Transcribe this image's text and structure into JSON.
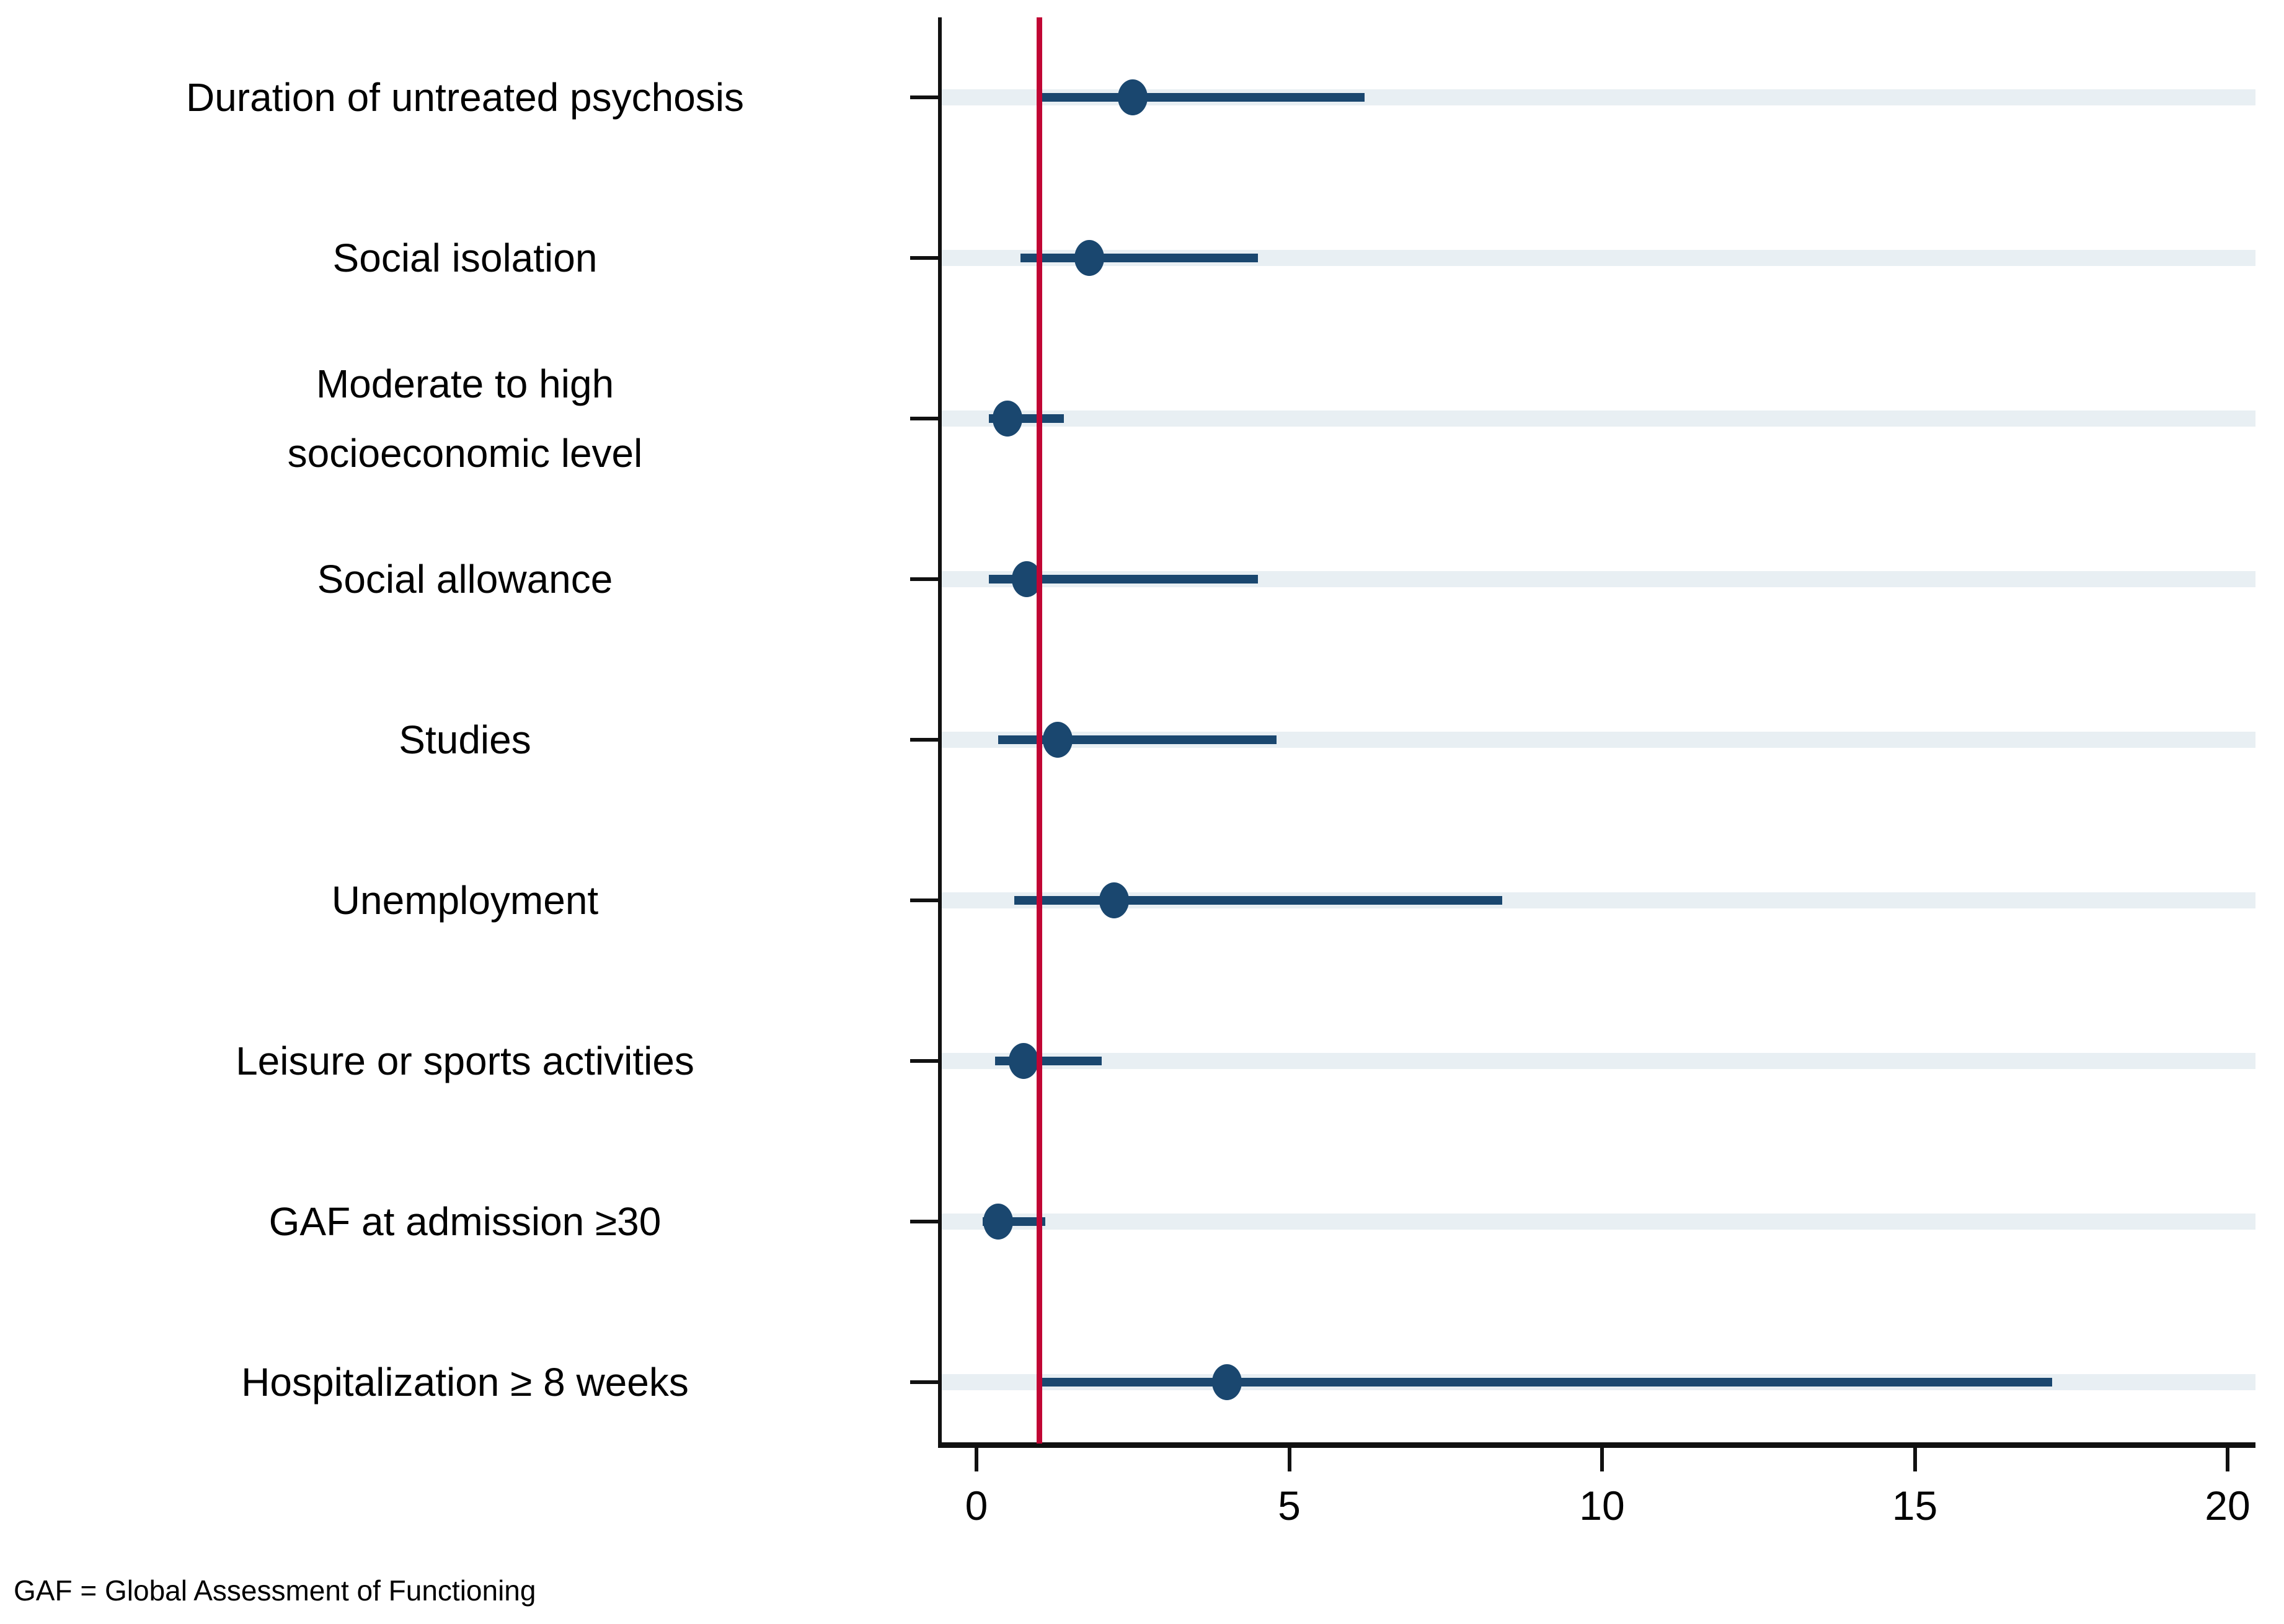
{
  "chart_data": {
    "type": "scatter",
    "subtype": "forest-plot",
    "title": "",
    "xlabel": "",
    "ylabel": "",
    "xlim": [
      -0.6,
      20.4
    ],
    "x_ticks": [
      0,
      5,
      10,
      15,
      20
    ],
    "grid": "horizontal",
    "reference_line_x": 1,
    "rows": [
      {
        "label_lines": [
          "Duration of untreated psychosis"
        ],
        "estimate": 2.5,
        "ci_low": 1.0,
        "ci_high": 6.2
      },
      {
        "label_lines": [
          "Social isolation"
        ],
        "estimate": 1.8,
        "ci_low": 0.7,
        "ci_high": 4.5
      },
      {
        "label_lines": [
          "Moderate to high",
          "socioeconomic level"
        ],
        "estimate": 0.5,
        "ci_low": 0.2,
        "ci_high": 1.4
      },
      {
        "label_lines": [
          "Social allowance"
        ],
        "estimate": 0.8,
        "ci_low": 0.2,
        "ci_high": 4.5
      },
      {
        "label_lines": [
          "Studies"
        ],
        "estimate": 1.3,
        "ci_low": 0.35,
        "ci_high": 4.8
      },
      {
        "label_lines": [
          "Unemployment"
        ],
        "estimate": 2.2,
        "ci_low": 0.6,
        "ci_high": 8.4
      },
      {
        "label_lines": [
          "Leisure or sports activities"
        ],
        "estimate": 0.75,
        "ci_low": 0.3,
        "ci_high": 2.0
      },
      {
        "label_lines": [
          "GAF at admission ≥30"
        ],
        "estimate": 0.35,
        "ci_low": 0.1,
        "ci_high": 1.1
      },
      {
        "label_lines": [
          "Hospitalization ≥ 8 weeks"
        ],
        "estimate": 4.0,
        "ci_low": 1.0,
        "ci_high": 17.2
      }
    ],
    "colors": {
      "marker": "#1a476f",
      "ci_line": "#1a476f",
      "reference_line": "#c10534",
      "gridline": "#e8eff3",
      "axis": "#111111",
      "text": "#000000",
      "background": "#ffffff"
    }
  },
  "footnote": "GAF = Global Assessment of Functioning"
}
